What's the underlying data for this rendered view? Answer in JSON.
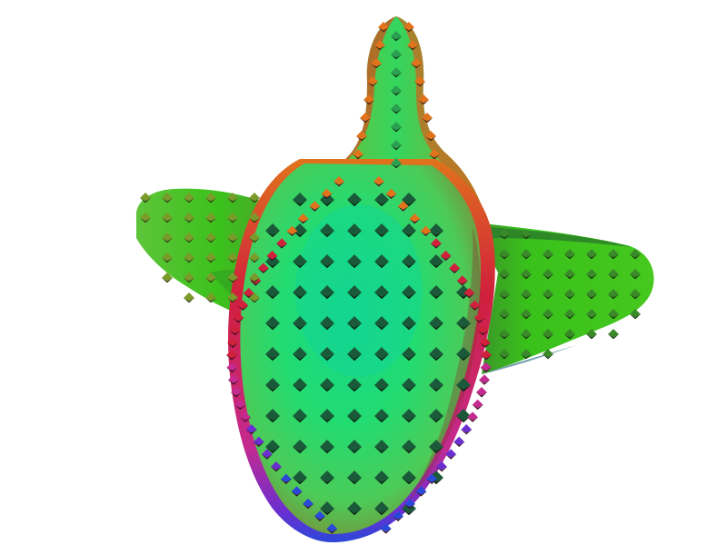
{
  "scene": {
    "subject": "green-mesh-surface-with-octahedron-glyphs",
    "background_color": "#ffffff",
    "colors": {
      "core": "#19d97a",
      "core_mid": "#30dc6a",
      "body": "#4ac93a",
      "wing": "#3cc21c",
      "wing_dark": "#2fa818",
      "rim_red": "#d1203c",
      "rim_orange": "#e0731c",
      "rim_magenta": "#c42a8f",
      "rim_purple": "#6a2ed1",
      "rim_blue": "#2b48d9",
      "glyph_shadow": "#0b2a14"
    }
  }
}
